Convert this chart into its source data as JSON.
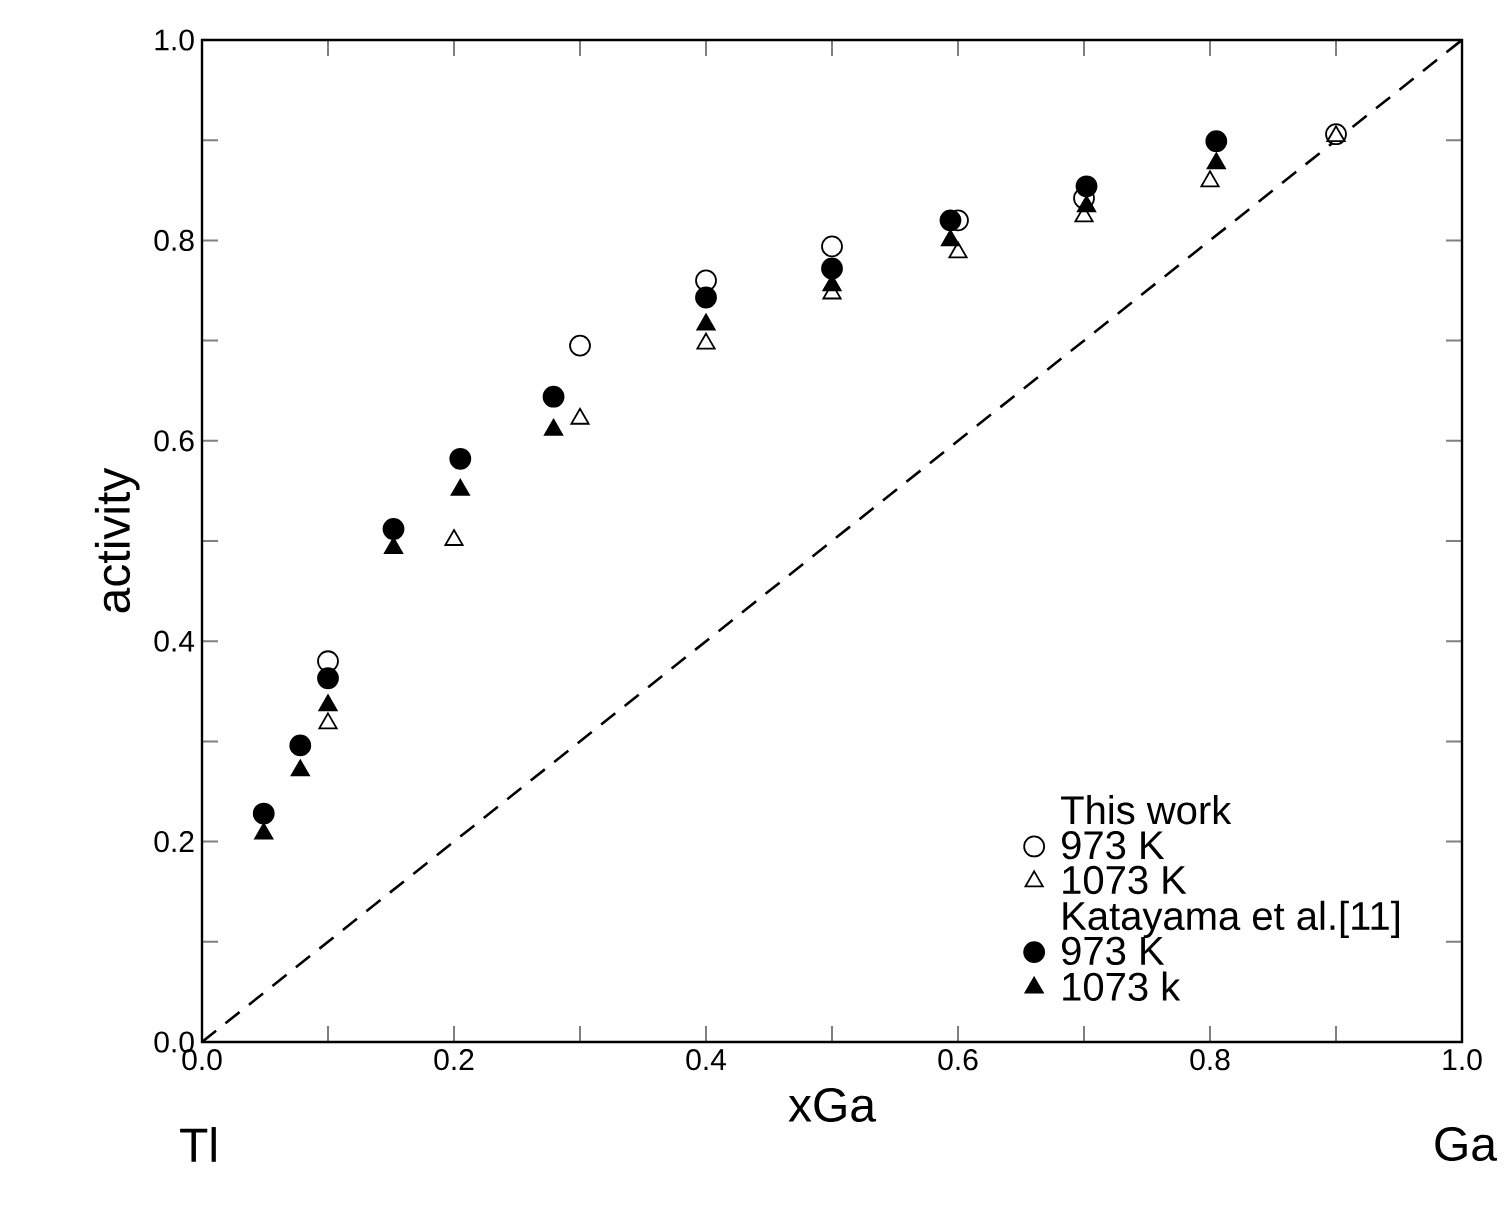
{
  "chart_data": {
    "type": "scatter",
    "xlabel": "xGa",
    "ylabel": "activity",
    "xlim": [
      0,
      1
    ],
    "ylim": [
      0,
      1
    ],
    "xticks": [
      {
        "value": 0,
        "label": "0.0"
      },
      {
        "value": 0.1,
        "label": null
      },
      {
        "value": 0.2,
        "label": "0.2"
      },
      {
        "value": 0.3,
        "label": null
      },
      {
        "value": 0.4,
        "label": "0.4"
      },
      {
        "value": 0.5,
        "label": null
      },
      {
        "value": 0.6,
        "label": "0.6"
      },
      {
        "value": 0.7,
        "label": null
      },
      {
        "value": 0.8,
        "label": "0.8"
      },
      {
        "value": 0.9,
        "label": null
      },
      {
        "value": 1,
        "label": "1.0"
      }
    ],
    "yticks": [
      {
        "value": 0,
        "label": "0.0"
      },
      {
        "value": 0.1,
        "label": null
      },
      {
        "value": 0.2,
        "label": "0.2"
      },
      {
        "value": 0.3,
        "label": null
      },
      {
        "value": 0.4,
        "label": "0.4"
      },
      {
        "value": 0.5,
        "label": null
      },
      {
        "value": 0.6,
        "label": "0.6"
      },
      {
        "value": 0.7,
        "label": null
      },
      {
        "value": 0.8,
        "label": "0.8"
      },
      {
        "value": 0.9,
        "label": null
      },
      {
        "value": 1,
        "label": "1.0"
      }
    ],
    "grid": false,
    "legend": "bottom right",
    "annotations": [
      "Tl",
      "Ga",
      "This work",
      "Katayama et al.[11]"
    ],
    "series": [
      {
        "name": "973 K",
        "color": "#ffffff",
        "marker": "circle",
        "x": [
          0.1,
          0.3,
          0.4,
          0.5,
          0.6,
          0.7,
          0.9
        ],
        "values": [
          0.38,
          0.695,
          0.76,
          0.794,
          0.82,
          0.842,
          0.906
        ]
      },
      {
        "name": "1073 K",
        "color": "#ffffff",
        "marker": "triangle",
        "x": [
          0.1,
          0.2,
          0.3,
          0.4,
          0.5,
          0.6,
          0.7,
          0.8,
          0.9
        ],
        "values": [
          0.318,
          0.501,
          0.622,
          0.697,
          0.747,
          0.788,
          0.824,
          0.859,
          0.904
        ]
      },
      {
        "name": "973 K",
        "color": "#000000",
        "marker": "circle",
        "x": [
          0.049,
          0.078,
          0.1,
          0.152,
          0.205,
          0.279,
          0.4,
          0.5,
          0.594,
          0.702,
          0.805
        ],
        "values": [
          0.228,
          0.296,
          0.363,
          0.512,
          0.582,
          0.644,
          0.743,
          0.772,
          0.82,
          0.854,
          0.899
        ]
      },
      {
        "name": "1073 k",
        "color": "#000000",
        "marker": "triangle",
        "x": [
          0.049,
          0.078,
          0.1,
          0.152,
          0.205,
          0.279,
          0.4,
          0.5,
          0.594,
          0.702,
          0.805
        ],
        "values": [
          0.208,
          0.271,
          0.336,
          0.493,
          0.551,
          0.611,
          0.716,
          0.755,
          0.8,
          0.834,
          0.877
        ]
      },
      {
        "type": "line",
        "color": "#000000",
        "marker": "none",
        "line_style": "dashed",
        "x": [
          0,
          1
        ],
        "values": [
          0,
          1
        ]
      }
    ]
  }
}
